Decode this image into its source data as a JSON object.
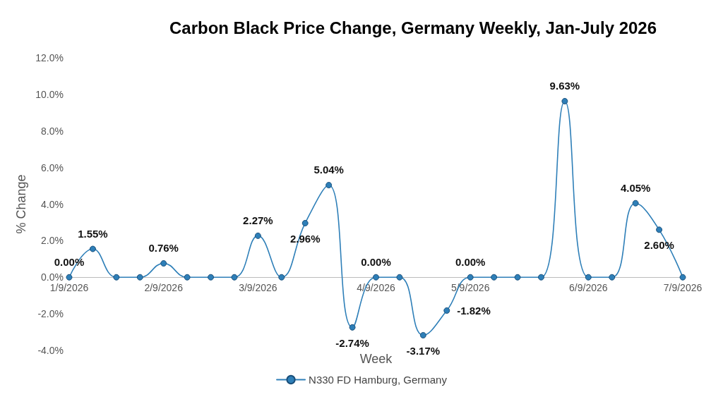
{
  "chart_data": {
    "type": "line",
    "title": "Carbon Black Price Change, Germany Weekly, Jan-July 2026",
    "xlabel": "Week",
    "ylabel": "% Change",
    "categories": [
      "1/9/2026",
      null,
      null,
      null,
      "2/9/2026",
      null,
      null,
      null,
      "3/9/2026",
      null,
      null,
      null,
      null,
      "4/9/2026",
      null,
      null,
      null,
      "5/9/2026",
      null,
      null,
      null,
      null,
      "6/9/2026",
      null,
      null,
      null,
      "7/9/2026"
    ],
    "series": [
      {
        "name": "N330 FD Hamburg, Germany",
        "color": "#2e7fb8",
        "values": [
          0,
          1.55,
          0,
          0,
          0.76,
          0,
          0,
          0,
          2.27,
          0,
          2.96,
          5.04,
          -2.74,
          0,
          0,
          -3.17,
          -1.82,
          0,
          0,
          0,
          0,
          9.63,
          0,
          0,
          4.05,
          2.6,
          0
        ],
        "value_labels": [
          "0.00%",
          "1.55%",
          null,
          null,
          "0.76%",
          null,
          null,
          null,
          "2.27%",
          null,
          "2.96%",
          "5.04%",
          "-2.74%",
          "0.00%",
          null,
          "-3.17%",
          "-1.82%",
          "0.00%",
          null,
          null,
          null,
          "9.63%",
          null,
          null,
          "4.05%",
          "2.60%",
          null
        ]
      }
    ],
    "ylim": [
      -4,
      12
    ],
    "yticks": [
      {
        "value": -4,
        "label": "-4.0%"
      },
      {
        "value": -2,
        "label": "-2.0%"
      },
      {
        "value": 0,
        "label": "0.0%"
      },
      {
        "value": 2,
        "label": "2.0%"
      },
      {
        "value": 4,
        "label": "4.0%"
      },
      {
        "value": 6,
        "label": "6.0%"
      },
      {
        "value": 8,
        "label": "8.0%"
      },
      {
        "value": 10,
        "label": "10.0%"
      },
      {
        "value": 12,
        "label": "12.0%"
      }
    ],
    "grid": false,
    "legend": "bottom",
    "marker": "circle",
    "line_style": "solid"
  }
}
